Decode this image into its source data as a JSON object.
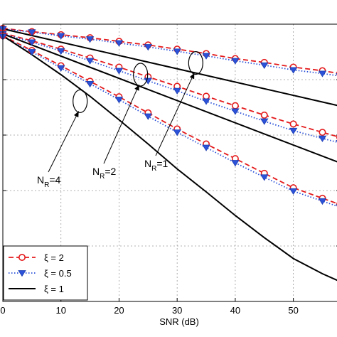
{
  "chart_data": {
    "type": "line",
    "title": "",
    "xlabel": "SNR (dB)",
    "ylabel": "",
    "xlim": [
      0,
      58
    ],
    "ylim": [
      0,
      1
    ],
    "x_ticks": [
      0,
      10,
      20,
      30,
      40,
      50
    ],
    "grid": true,
    "legend_position": "bottom-left",
    "legend": [
      {
        "label": "ξ = 2",
        "style": "dashed",
        "color": "#e41a1c",
        "marker": "circle"
      },
      {
        "label": "ξ = 0.5",
        "style": "dotted",
        "color": "#2b52d9",
        "marker": "triangle-down"
      },
      {
        "label": "ξ = 1",
        "style": "solid",
        "color": "#000000",
        "marker": "none"
      }
    ],
    "annotations": [
      {
        "text_main": "N",
        "text_sub": "R",
        "text_tail": "=4",
        "x": 13.3,
        "y": 0.722
      },
      {
        "text_main": "N",
        "text_sub": "R",
        "text_tail": "=2",
        "x": 23.7,
        "y": 0.818
      },
      {
        "text_main": "N",
        "text_sub": "R",
        "text_tail": "=1",
        "x": 33.2,
        "y": 0.86
      }
    ],
    "series": [
      {
        "group": "NR=1",
        "xi": "2",
        "x": [
          0,
          5,
          10,
          15,
          20,
          25,
          30,
          35,
          40,
          45,
          50,
          55,
          58
        ],
        "y": [
          0.985,
          0.973,
          0.962,
          0.951,
          0.938,
          0.925,
          0.91,
          0.894,
          0.876,
          0.862,
          0.845,
          0.832,
          0.822
        ]
      },
      {
        "group": "NR=1",
        "xi": "0.5",
        "x": [
          0,
          5,
          10,
          15,
          20,
          25,
          30,
          35,
          40,
          45,
          50,
          55,
          58
        ],
        "y": [
          0.983,
          0.971,
          0.958,
          0.946,
          0.932,
          0.918,
          0.902,
          0.886,
          0.868,
          0.852,
          0.835,
          0.822,
          0.813
        ]
      },
      {
        "group": "NR=1",
        "xi": "1",
        "x": [
          0,
          58
        ],
        "y": [
          0.983,
          0.705
        ]
      },
      {
        "group": "NR=2",
        "xi": "2",
        "x": [
          0,
          5,
          10,
          15,
          20,
          25,
          30,
          35,
          40,
          45,
          50,
          55,
          58
        ],
        "y": [
          0.968,
          0.94,
          0.91,
          0.878,
          0.845,
          0.81,
          0.776,
          0.74,
          0.706,
          0.672,
          0.64,
          0.61,
          0.592
        ]
      },
      {
        "group": "NR=2",
        "xi": "0.5",
        "x": [
          0,
          5,
          10,
          15,
          20,
          25,
          30,
          35,
          40,
          45,
          50,
          55,
          58
        ],
        "y": [
          0.965,
          0.935,
          0.903,
          0.868,
          0.832,
          0.796,
          0.76,
          0.722,
          0.686,
          0.65,
          0.616,
          0.588,
          0.572
        ]
      },
      {
        "group": "NR=2",
        "xi": "1",
        "x": [
          0,
          58
        ],
        "y": [
          0.965,
          0.5
        ]
      },
      {
        "group": "NR=4",
        "xi": "2",
        "x": [
          0,
          5,
          10,
          15,
          20,
          25,
          30,
          35,
          40,
          45,
          50,
          55,
          58
        ],
        "y": [
          0.958,
          0.905,
          0.85,
          0.794,
          0.738,
          0.68,
          0.622,
          0.568,
          0.515,
          0.462,
          0.41,
          0.372,
          0.35
        ]
      },
      {
        "group": "NR=4",
        "xi": "0.5",
        "x": [
          0,
          5,
          10,
          15,
          20,
          25,
          30,
          35,
          40,
          45,
          50,
          55,
          58
        ],
        "y": [
          0.955,
          0.9,
          0.842,
          0.785,
          0.728,
          0.668,
          0.61,
          0.555,
          0.5,
          0.448,
          0.398,
          0.362,
          0.34
        ]
      },
      {
        "group": "NR=4",
        "xi": "1",
        "x": [
          0,
          5,
          10,
          15,
          20,
          25,
          30,
          35,
          40,
          45,
          50,
          55,
          58
        ],
        "y": [
          0.958,
          0.89,
          0.818,
          0.74,
          0.655,
          0.568,
          0.478,
          0.395,
          0.31,
          0.23,
          0.155,
          0.1,
          0.072
        ]
      }
    ]
  }
}
